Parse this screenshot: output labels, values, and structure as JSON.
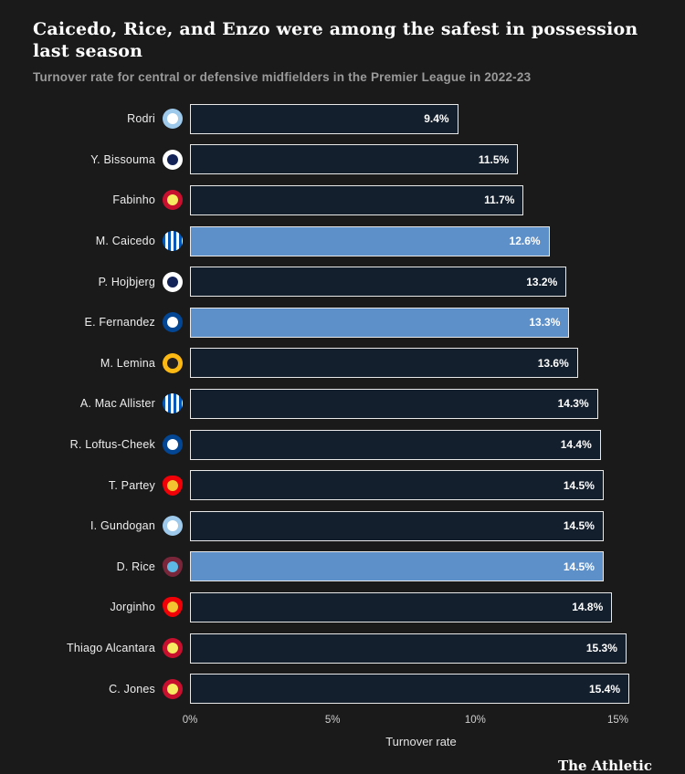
{
  "header": {
    "title": "Caicedo, Rice, and Enzo were among the safest in possession last season",
    "subtitle": "Turnover rate for central or defensive midfielders in the Premier League in 2022-23"
  },
  "chart_data": {
    "type": "bar",
    "orientation": "horizontal",
    "title": "Caicedo, Rice, and Enzo were among the safest in possession last season",
    "subtitle": "Turnover rate for central or defensive midfielders in the Premier League in 2022-23",
    "xlabel": "Turnover rate",
    "xlim": [
      0,
      16.2
    ],
    "grid": false,
    "legend": false,
    "bar_color": "#141f2d",
    "highlight_color": "#5d8fc9",
    "bar_border_color": "#e9e9e9",
    "x_ticks": [
      {
        "value": 0,
        "label": "0%"
      },
      {
        "value": 5,
        "label": "5%"
      },
      {
        "value": 10,
        "label": "10%"
      },
      {
        "value": 15,
        "label": "15%"
      }
    ],
    "players": [
      {
        "name": "Rodri",
        "club": "Manchester City",
        "club_id": "manchester-city",
        "value": 9.4,
        "label": "9.4%",
        "highlighted": false,
        "badge": {
          "style": "circle",
          "bg": "#9ec9ea",
          "inner": "#ffffff"
        }
      },
      {
        "name": "Y. Bissouma",
        "club": "Tottenham Hotspur",
        "club_id": "tottenham",
        "value": 11.5,
        "label": "11.5%",
        "highlighted": false,
        "badge": {
          "style": "circle",
          "bg": "#ffffff",
          "inner": "#132257"
        }
      },
      {
        "name": "Fabinho",
        "club": "Liverpool",
        "club_id": "liverpool",
        "value": 11.7,
        "label": "11.7%",
        "highlighted": false,
        "badge": {
          "style": "circle",
          "bg": "#c8102e",
          "inner": "#f6eb61"
        }
      },
      {
        "name": "M. Caicedo",
        "club": "Brighton & Hove Albion",
        "club_id": "brighton",
        "value": 12.6,
        "label": "12.6%",
        "highlighted": true,
        "badge": {
          "style": "stripes",
          "bg": "#0057b8",
          "fg": "#ffffff",
          "inner": ""
        }
      },
      {
        "name": "P. Hojbjerg",
        "club": "Tottenham Hotspur",
        "club_id": "tottenham",
        "value": 13.2,
        "label": "13.2%",
        "highlighted": false,
        "badge": {
          "style": "circle",
          "bg": "#ffffff",
          "inner": "#132257"
        }
      },
      {
        "name": "E. Fernandez",
        "club": "Chelsea",
        "club_id": "chelsea",
        "value": 13.3,
        "label": "13.3%",
        "highlighted": true,
        "badge": {
          "style": "circle",
          "bg": "#034694",
          "inner": "#ffffff"
        }
      },
      {
        "name": "M. Lemina",
        "club": "Wolverhampton Wanderers",
        "club_id": "wolves",
        "value": 13.6,
        "label": "13.6%",
        "highlighted": false,
        "badge": {
          "style": "circle",
          "bg": "#fdb913",
          "inner": "#231f20"
        }
      },
      {
        "name": "A. Mac Allister",
        "club": "Brighton & Hove Albion",
        "club_id": "brighton",
        "value": 14.3,
        "label": "14.3%",
        "highlighted": false,
        "badge": {
          "style": "stripes",
          "bg": "#0057b8",
          "fg": "#ffffff",
          "inner": ""
        }
      },
      {
        "name": "R. Loftus-Cheek",
        "club": "Chelsea",
        "club_id": "chelsea",
        "value": 14.4,
        "label": "14.4%",
        "highlighted": false,
        "badge": {
          "style": "circle",
          "bg": "#034694",
          "inner": "#ffffff"
        }
      },
      {
        "name": "T. Partey",
        "club": "Arsenal",
        "club_id": "arsenal",
        "value": 14.5,
        "label": "14.5%",
        "highlighted": false,
        "badge": {
          "style": "shield",
          "bg": "#ef0107",
          "inner": "#f4c430"
        }
      },
      {
        "name": "I. Gundogan",
        "club": "Manchester City",
        "club_id": "manchester-city",
        "value": 14.5,
        "label": "14.5%",
        "highlighted": false,
        "badge": {
          "style": "circle",
          "bg": "#9ec9ea",
          "inner": "#ffffff"
        }
      },
      {
        "name": "D. Rice",
        "club": "West Ham United",
        "club_id": "west-ham",
        "value": 14.5,
        "label": "14.5%",
        "highlighted": true,
        "badge": {
          "style": "shield",
          "bg": "#7a263a",
          "inner": "#5cb8e4"
        }
      },
      {
        "name": "Jorginho",
        "club": "Arsenal",
        "club_id": "arsenal",
        "value": 14.8,
        "label": "14.8%",
        "highlighted": false,
        "badge": {
          "style": "shield",
          "bg": "#ef0107",
          "inner": "#f4c430"
        }
      },
      {
        "name": "Thiago Alcantara",
        "club": "Liverpool",
        "club_id": "liverpool",
        "value": 15.3,
        "label": "15.3%",
        "highlighted": false,
        "badge": {
          "style": "circle",
          "bg": "#c8102e",
          "inner": "#f6eb61"
        }
      },
      {
        "name": "C. Jones",
        "club": "Liverpool",
        "club_id": "liverpool",
        "value": 15.4,
        "label": "15.4%",
        "highlighted": false,
        "badge": {
          "style": "circle",
          "bg": "#c8102e",
          "inner": "#f6eb61"
        }
      }
    ]
  },
  "footer": {
    "brand": "The Athletic"
  }
}
